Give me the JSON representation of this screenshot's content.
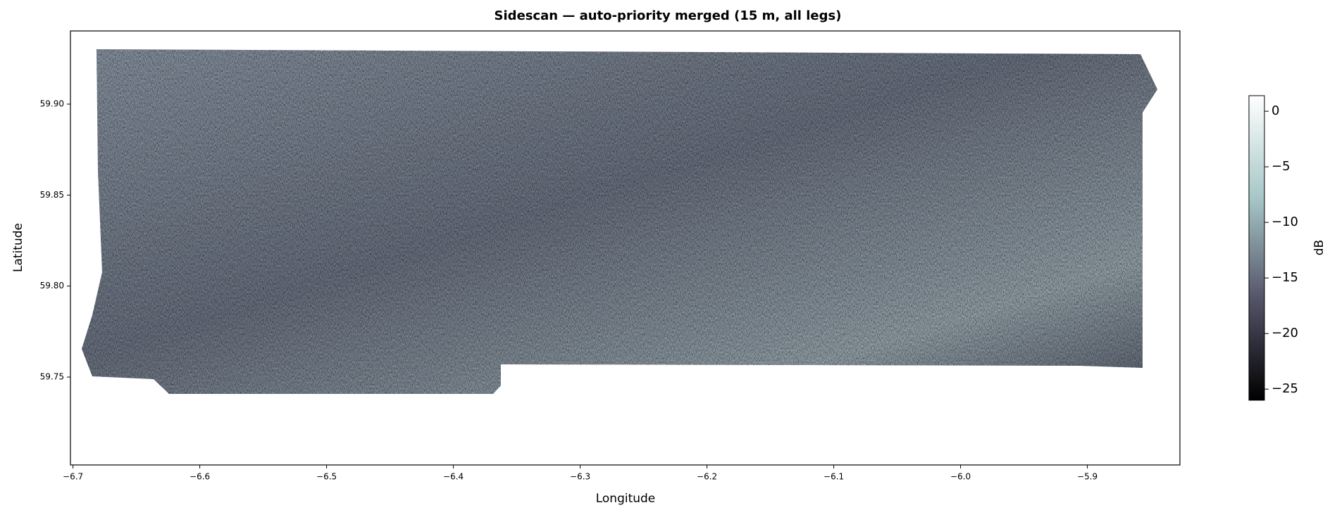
{
  "chart_data": {
    "type": "image",
    "title": "Sidescan — auto-priority merged (15 m, all legs)",
    "x_label": "Longitude",
    "y_label": "Latitude",
    "colorbar_label": "dB",
    "colormap": "bone",
    "xlim": [
      -6.702,
      -5.827
    ],
    "ylim": [
      59.7017,
      59.9402
    ],
    "clim": [
      -26,
      1.4
    ],
    "xticks": [
      {
        "value": -6.7,
        "label": "−6.7"
      },
      {
        "value": -6.6,
        "label": "−6.6"
      },
      {
        "value": -6.5,
        "label": "−6.5"
      },
      {
        "value": -6.4,
        "label": "−6.4"
      },
      {
        "value": -6.3,
        "label": "−6.3"
      },
      {
        "value": -6.2,
        "label": "−6.2"
      },
      {
        "value": -6.1,
        "label": "−6.1"
      },
      {
        "value": -6.0,
        "label": "−6.0"
      },
      {
        "value": -5.9,
        "label": "−5.9"
      }
    ],
    "yticks": [
      59.75,
      {
        "value": 59.8,
        "label": "59.80"
      },
      59.85,
      {
        "value": 59.9,
        "label": "59.90"
      }
    ],
    "cticks": [
      0,
      {
        "value": -5,
        "label": "−5"
      },
      {
        "value": -10,
        "label": "−10"
      },
      {
        "value": -15,
        "label": "−15"
      },
      {
        "value": -20,
        "label": "−20"
      },
      {
        "value": -25,
        "label": "−25"
      }
    ]
  }
}
